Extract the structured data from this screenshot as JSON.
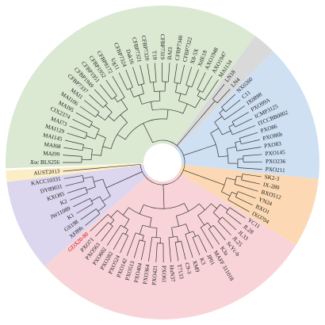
{
  "tree": {
    "colors": {
      "clade_red": "#f8d4d8",
      "clade_orange": "#fcd9b4",
      "clade_blue": "#cfe0f3",
      "clade_grey": "#d9d9d9",
      "clade_green": "#dbe9d3",
      "clade_purple": "#dcd6ee",
      "clade_yellow": "#fbeec6",
      "highlight_label": "#d0021b"
    },
    "highlighted_leaf": "GDX20-80",
    "leaves": [
      {
        "label": "Xoc BLS256",
        "clade": "green",
        "italic_prefix": "Xoc",
        "rest": " BLS256"
      },
      {
        "label": "MAI99",
        "clade": "green"
      },
      {
        "label": "MAI68",
        "clade": "green"
      },
      {
        "label": "MAI145",
        "clade": "green"
      },
      {
        "label": "MAI129",
        "clade": "green"
      },
      {
        "label": "MAI73",
        "clade": "green"
      },
      {
        "label": "CIX2374",
        "clade": "green"
      },
      {
        "label": "MAI95",
        "clade": "green"
      },
      {
        "label": "MAI106",
        "clade": "green"
      },
      {
        "label": "MAI1",
        "clade": "green"
      },
      {
        "label": "CFBP7337",
        "clade": "green"
      },
      {
        "label": "CFBP1949",
        "clade": "green"
      },
      {
        "label": "CFBP1951",
        "clade": "green"
      },
      {
        "label": "CFBP1952",
        "clade": "green"
      },
      {
        "label": "CFBP8172",
        "clade": "green"
      },
      {
        "label": "Ug11",
        "clade": "green"
      },
      {
        "label": "CFBP7324",
        "clade": "green"
      },
      {
        "label": "Dak16",
        "clade": "green"
      },
      {
        "label": "CFBP7321",
        "clade": "green"
      },
      {
        "label": "CFBP7320",
        "clade": "green"
      },
      {
        "label": "T19",
        "clade": "green"
      },
      {
        "label": "CFBP7319",
        "clade": "green"
      },
      {
        "label": "BAI3",
        "clade": "green"
      },
      {
        "label": "CFBP7340",
        "clade": "green"
      },
      {
        "label": "CFBP7322",
        "clade": "green"
      },
      {
        "label": "X8-5X",
        "clade": "green"
      },
      {
        "label": "XtIE18",
        "clade": "green"
      },
      {
        "label": "AXO1948",
        "clade": "green"
      },
      {
        "label": "AXO1947",
        "clade": "green"
      },
      {
        "label": "MAI134",
        "clade": "green"
      },
      {
        "label": "LN18",
        "clade": "grey"
      },
      {
        "label": "LN4",
        "clade": "grey"
      },
      {
        "label": "NX0260",
        "clade": "blue"
      },
      {
        "label": "C11",
        "clade": "blue"
      },
      {
        "label": "IX0898",
        "clade": "blue"
      },
      {
        "label": "PXO99A",
        "clade": "blue"
      },
      {
        "label": "ICMP3125",
        "clade": "blue"
      },
      {
        "label": "ITCCBB0002",
        "clade": "blue"
      },
      {
        "label": "PXO86",
        "clade": "blue"
      },
      {
        "label": "PXO86b",
        "clade": "blue"
      },
      {
        "label": "PXO83",
        "clade": "blue"
      },
      {
        "label": "PXO145",
        "clade": "blue"
      },
      {
        "label": "PXO236",
        "clade": "blue"
      },
      {
        "label": "PXO211",
        "clade": "blue"
      },
      {
        "label": "SK2-3",
        "clade": "orange"
      },
      {
        "label": "IX-280",
        "clade": "orange"
      },
      {
        "label": "BXO512",
        "clade": "orange"
      },
      {
        "label": "YN24",
        "clade": "orange"
      },
      {
        "label": "BXO1",
        "clade": "orange"
      },
      {
        "label": "IXO704",
        "clade": "orange"
      },
      {
        "label": "YC11",
        "clade": "red"
      },
      {
        "label": "JL28",
        "clade": "red"
      },
      {
        "label": "JL33",
        "clade": "red"
      },
      {
        "label": "JL25",
        "clade": "red"
      },
      {
        "label": "ScYc-b",
        "clade": "red"
      },
      {
        "label": "K3a",
        "clade": "red"
      },
      {
        "label": "MAFF 311018",
        "clade": "red"
      },
      {
        "label": "JP01",
        "clade": "red"
      },
      {
        "label": "K3",
        "clade": "red"
      },
      {
        "label": "XM9",
        "clade": "red"
      },
      {
        "label": "C9-3",
        "clade": "red"
      },
      {
        "label": "T7133",
        "clade": "red"
      },
      {
        "label": "HuN37",
        "clade": "red"
      },
      {
        "label": "PXO61",
        "clade": "red"
      },
      {
        "label": "PXO421",
        "clade": "red"
      },
      {
        "label": "PXO364",
        "clade": "red"
      },
      {
        "label": "PXO404",
        "clade": "red"
      },
      {
        "label": "PXO513",
        "clade": "red"
      },
      {
        "label": "PXO142",
        "clade": "red"
      },
      {
        "label": "PXO524",
        "clade": "red"
      },
      {
        "label": "PXO282",
        "clade": "red"
      },
      {
        "label": "PXO602",
        "clade": "red"
      },
      {
        "label": "PXO563",
        "clade": "red"
      },
      {
        "label": "PXO71",
        "clade": "red"
      },
      {
        "label": "GDX20-80",
        "clade": "red"
      },
      {
        "label": "XF89b",
        "clade": "purple"
      },
      {
        "label": "GS198",
        "clade": "purple"
      },
      {
        "label": "K1",
        "clade": "purple"
      },
      {
        "label": "JW11089",
        "clade": "purple"
      },
      {
        "label": "K2",
        "clade": "purple"
      },
      {
        "label": "KXO85",
        "clade": "purple"
      },
      {
        "label": "DY89031",
        "clade": "purple"
      },
      {
        "label": "KACC10331",
        "clade": "purple"
      },
      {
        "label": "AUST2013",
        "clade": "yellow"
      }
    ]
  }
}
